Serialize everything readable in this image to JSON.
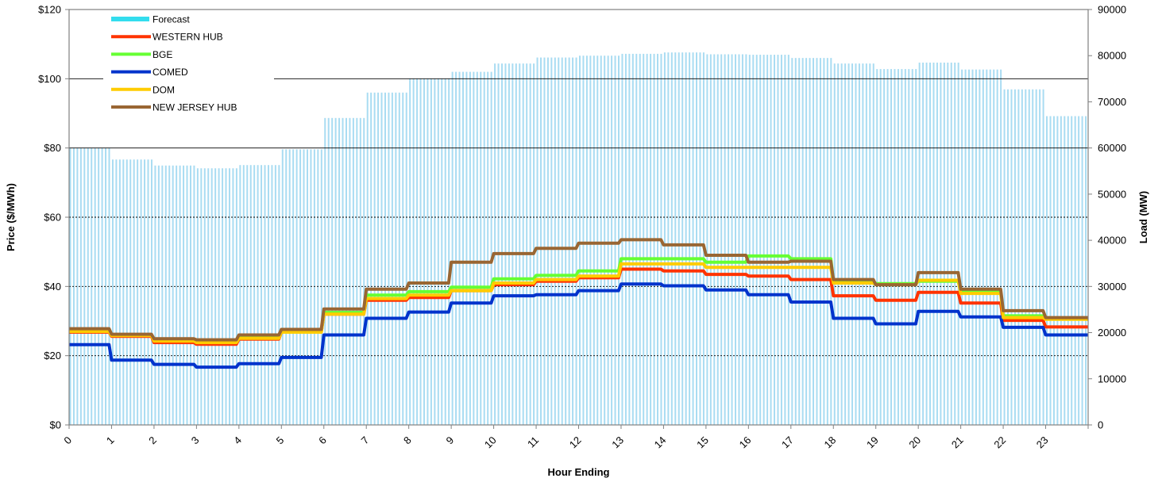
{
  "chart_data": {
    "type": "line",
    "title": "",
    "xlabel": "Hour Ending",
    "ylabel_left": "Price ($/MWh)",
    "ylabel_right": "Load (MW)",
    "x_ticks": [
      "0",
      "1",
      "2",
      "3",
      "4",
      "5",
      "6",
      "7",
      "8",
      "9",
      "10",
      "11",
      "12",
      "13",
      "14",
      "15",
      "16",
      "17",
      "18",
      "19",
      "20",
      "21",
      "22",
      "23"
    ],
    "y_left_ticks": [
      "$0",
      "$20",
      "$40",
      "$60",
      "$80",
      "$100",
      "$120"
    ],
    "y_right_ticks": [
      "0",
      "10000",
      "20000",
      "30000",
      "40000",
      "50000",
      "60000",
      "70000",
      "80000",
      "90000"
    ],
    "y_left_lim": [
      0,
      120
    ],
    "y_right_lim": [
      0,
      90000
    ],
    "x_lim": [
      0,
      24
    ],
    "grid": "horizontal dotted",
    "legend_position": "top-left",
    "load_series": {
      "name": "Forecast",
      "axis": "right",
      "color": "#66ccff",
      "values": [
        60000,
        57500,
        56200,
        55600,
        56300,
        59700,
        66500,
        72000,
        75000,
        76500,
        78300,
        79600,
        80000,
        80400,
        80700,
        80300,
        80200,
        79500,
        78300,
        77100,
        78500,
        77000,
        72700,
        66900
      ]
    },
    "series": [
      {
        "name": "WESTERN HUB",
        "color": "#ff3300",
        "values": [
          26.8,
          25.6,
          23.8,
          23.3,
          24.8,
          26.8,
          32.0,
          36.0,
          36.8,
          38.8,
          40.5,
          41.5,
          42.5,
          45.0,
          44.5,
          43.5,
          43.0,
          42.0,
          37.3,
          36.0,
          38.3,
          35.2,
          30.2,
          28.3
        ]
      },
      {
        "name": "BGE",
        "color": "#66ff33",
        "values": [
          27.5,
          26.0,
          24.5,
          24.2,
          25.5,
          27.0,
          32.5,
          37.5,
          38.5,
          39.8,
          42.2,
          43.2,
          44.5,
          48.0,
          48.0,
          47.0,
          48.8,
          48.0,
          41.5,
          40.8,
          41.5,
          38.5,
          31.5,
          30.8
        ]
      },
      {
        "name": "COMED",
        "color": "#0033cc",
        "values": [
          23.2,
          18.7,
          17.5,
          16.7,
          17.7,
          19.5,
          26.0,
          30.8,
          32.6,
          35.2,
          37.3,
          37.6,
          38.8,
          40.7,
          40.2,
          39.0,
          37.6,
          35.5,
          30.8,
          29.2,
          32.8,
          31.2,
          28.2,
          26.0
        ]
      },
      {
        "name": "DOM",
        "color": "#ffcc00",
        "values": [
          27.0,
          25.8,
          24.2,
          23.8,
          25.0,
          26.8,
          32.0,
          36.5,
          37.5,
          38.8,
          41.0,
          42.0,
          43.0,
          46.5,
          46.5,
          45.5,
          45.5,
          45.5,
          41.0,
          40.5,
          41.8,
          38.0,
          31.0,
          30.5
        ]
      },
      {
        "name": "NEW JERSEY HUB",
        "color": "#996633",
        "values": [
          27.8,
          26.2,
          24.9,
          24.6,
          26.0,
          27.6,
          33.5,
          39.2,
          41.0,
          47.0,
          49.5,
          51.0,
          52.5,
          53.5,
          52.0,
          49.0,
          47.0,
          47.3,
          42.0,
          40.5,
          44.0,
          39.2,
          33.0,
          31.0
        ]
      }
    ]
  }
}
